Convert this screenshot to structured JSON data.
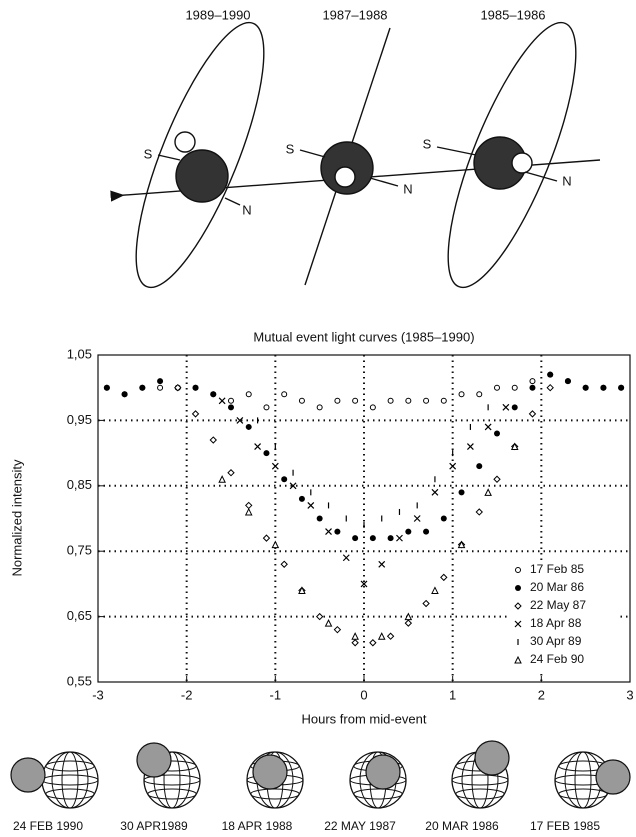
{
  "diagram": {
    "orbits": [
      {
        "period": "1989–1990",
        "south": "S",
        "north": "N"
      },
      {
        "period": "1987–1988",
        "south": "S",
        "north": "N"
      },
      {
        "period": "1985–1986",
        "south": "S",
        "north": "N"
      }
    ],
    "events": [
      "24 FEB 1990",
      "30 APR1989",
      "18 APR 1988",
      "22 MAY 1987",
      "20 MAR 1986",
      "17 FEB 1985"
    ]
  },
  "chart_data": {
    "type": "scatter",
    "title": "Mutual event light curves (1985–1990)",
    "x_label": "Hours from mid-event",
    "y_label": "Normalized intensity",
    "xlim": [
      -3,
      3
    ],
    "xticks": [
      -3,
      -2,
      -1,
      0,
      1,
      2,
      3
    ],
    "ylim": [
      0.55,
      1.05
    ],
    "yticks": [
      {
        "value": 0.55,
        "label": "0,55"
      },
      {
        "value": 0.65,
        "label": "0,65"
      },
      {
        "value": 0.75,
        "label": "0,75"
      },
      {
        "value": 0.85,
        "label": "0,85"
      },
      {
        "value": 0.95,
        "label": "0,95"
      },
      {
        "value": 1.05,
        "label": "1,05"
      }
    ],
    "grid": true,
    "legend": "lower right",
    "series": [
      {
        "name": "17 Feb 85",
        "color": "#000",
        "marker": "circle-open",
        "x": [
          -2.9,
          -2.7,
          -2.5,
          -2.3,
          -2.1,
          -1.9,
          -1.7,
          -1.5,
          -1.3,
          -1.1,
          -0.9,
          -0.7,
          -0.5,
          -0.3,
          -0.1,
          0.1,
          0.3,
          0.5,
          0.7,
          0.9,
          1.1,
          1.3,
          1.5,
          1.7,
          1.9,
          2.1,
          2.3,
          2.5,
          2.7,
          2.9
        ],
        "values": [
          1.0,
          0.99,
          1.0,
          1.0,
          1.0,
          1.0,
          0.99,
          0.98,
          0.99,
          0.97,
          0.99,
          0.98,
          0.97,
          0.98,
          0.98,
          0.97,
          0.98,
          0.98,
          0.98,
          0.98,
          0.99,
          0.99,
          1.0,
          1.0,
          1.01,
          1.02,
          1.01,
          1.0,
          1.0,
          1.0
        ]
      },
      {
        "name": "20 Mar 86",
        "color": "#000",
        "marker": "circle-filled",
        "x": [
          -2.9,
          -2.7,
          -2.5,
          -2.3,
          -2.1,
          -1.9,
          -1.7,
          -1.5,
          -1.3,
          -1.1,
          -0.9,
          -0.7,
          -0.5,
          -0.3,
          -0.1,
          0.1,
          0.3,
          0.5,
          0.7,
          0.9,
          1.1,
          1.3,
          1.5,
          1.7,
          1.9,
          2.1,
          2.3,
          2.5,
          2.7,
          2.9
        ],
        "values": [
          1.0,
          0.99,
          1.0,
          1.01,
          1.0,
          1.0,
          0.99,
          0.97,
          0.94,
          0.9,
          0.86,
          0.83,
          0.8,
          0.78,
          0.77,
          0.77,
          0.77,
          0.78,
          0.78,
          0.8,
          0.84,
          0.88,
          0.93,
          0.97,
          1.0,
          1.02,
          1.01,
          1.0,
          1.0,
          1.0
        ]
      },
      {
        "name": "22 May 87",
        "color": "#000",
        "marker": "diamond",
        "x": [
          -2.1,
          -1.9,
          -1.7,
          -1.5,
          -1.3,
          -1.1,
          -0.9,
          -0.7,
          -0.5,
          -0.3,
          -0.1,
          0.1,
          0.3,
          0.5,
          0.7,
          0.9,
          1.1,
          1.3,
          1.5,
          1.7,
          1.9,
          2.1
        ],
        "values": [
          1.0,
          0.96,
          0.92,
          0.87,
          0.82,
          0.77,
          0.73,
          0.69,
          0.65,
          0.63,
          0.61,
          0.61,
          0.62,
          0.64,
          0.67,
          0.71,
          0.76,
          0.81,
          0.86,
          0.91,
          0.96,
          1.0
        ]
      },
      {
        "name": "18 Apr 88",
        "color": "#000",
        "marker": "cross",
        "x": [
          -1.6,
          -1.4,
          -1.2,
          -1.0,
          -0.8,
          -0.6,
          -0.4,
          -0.2,
          0,
          0.2,
          0.4,
          0.6,
          0.8,
          1.0,
          1.2,
          1.4,
          1.6
        ],
        "values": [
          0.98,
          0.95,
          0.91,
          0.88,
          0.85,
          0.82,
          0.78,
          0.74,
          0.7,
          0.73,
          0.77,
          0.8,
          0.84,
          0.88,
          0.91,
          0.94,
          0.97
        ]
      },
      {
        "name": "30 Apr 89",
        "color": "#000",
        "marker": "tick",
        "x": [
          -1.2,
          -1.0,
          -0.8,
          -0.6,
          -0.4,
          -0.2,
          0,
          0.2,
          0.4,
          0.6,
          0.8,
          1.0,
          1.2,
          1.4
        ],
        "values": [
          0.95,
          0.91,
          0.87,
          0.84,
          0.82,
          0.8,
          0.79,
          0.8,
          0.81,
          0.82,
          0.86,
          0.9,
          0.94,
          0.97
        ]
      },
      {
        "name": "24 Feb 90",
        "color": "#000",
        "marker": "triangle",
        "x": [
          -1.6,
          -1.3,
          -1.0,
          -0.7,
          -0.4,
          -0.1,
          0.2,
          0.5,
          0.8,
          1.1,
          1.4,
          1.7
        ],
        "values": [
          0.86,
          0.81,
          0.76,
          0.69,
          0.64,
          0.62,
          0.62,
          0.65,
          0.69,
          0.76,
          0.84,
          0.91
        ]
      }
    ]
  }
}
